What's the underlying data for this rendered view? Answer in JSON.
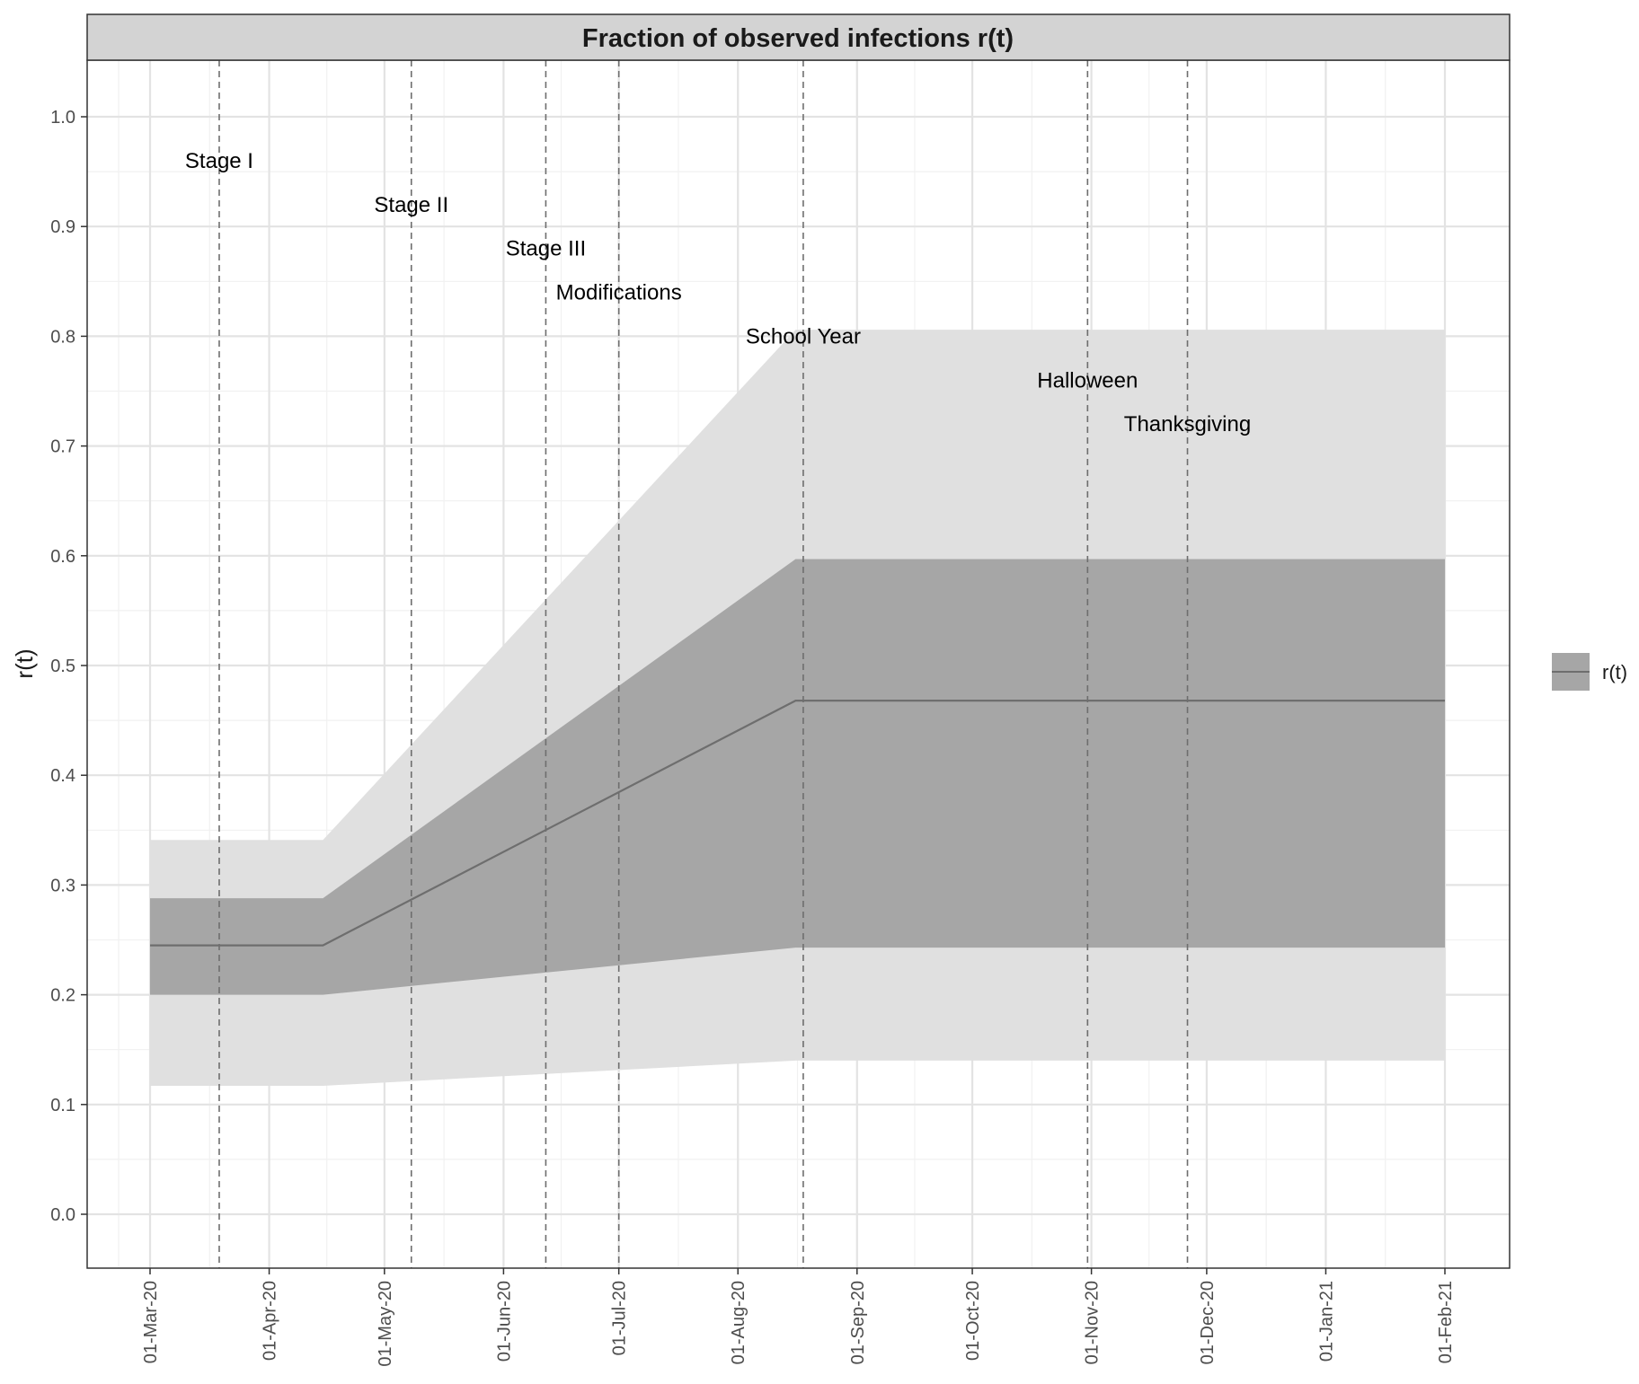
{
  "chart_data": {
    "type": "area",
    "title": "Fraction of observed infections r(t)",
    "xlabel": "",
    "ylabel": "r(t)",
    "x_ticks": [
      "01-Mar-20",
      "01-Apr-20",
      "01-May-20",
      "01-Jun-20",
      "01-Jul-20",
      "01-Aug-20",
      "01-Sep-20",
      "01-Oct-20",
      "01-Nov-20",
      "01-Dec-20",
      "01-Jan-21",
      "01-Feb-21"
    ],
    "x_range": [
      "2020-02-14",
      "2021-02-01"
    ],
    "y_ticks": [
      0.0,
      0.1,
      0.2,
      0.3,
      0.4,
      0.5,
      0.6,
      0.7,
      0.8,
      0.9,
      1.0
    ],
    "y_tick_labels": [
      "0.0",
      "0.1",
      "0.2",
      "0.3",
      "0.4",
      "0.5",
      "0.6",
      "0.7",
      "0.8",
      "0.9",
      "1.0"
    ],
    "ylim": [
      -0.05,
      1.05
    ],
    "grid": true,
    "legend": {
      "position": "right",
      "entries": [
        {
          "label": "r(t)",
          "color": "#a6a6a6",
          "line_color": "#6e6e6e"
        }
      ]
    },
    "series": [
      {
        "name": "r(t)",
        "x": [
          "2020-03-01",
          "2020-04-15",
          "2020-08-16",
          "2021-02-01"
        ],
        "median": [
          0.245,
          0.245,
          0.468,
          0.468
        ],
        "inner_lower": [
          0.2,
          0.2,
          0.243,
          0.243
        ],
        "inner_upper": [
          0.288,
          0.288,
          0.597,
          0.597
        ],
        "outer_lower": [
          0.117,
          0.117,
          0.14,
          0.14
        ],
        "outer_upper": [
          0.341,
          0.341,
          0.806,
          0.806
        ]
      }
    ],
    "events": [
      {
        "label": "Stage I",
        "date": "2020-03-19",
        "y": 0.96
      },
      {
        "label": "Stage II",
        "date": "2020-05-08",
        "y": 0.92
      },
      {
        "label": "Stage III",
        "date": "2020-06-12",
        "y": 0.88
      },
      {
        "label": "Modifications",
        "date": "2020-07-01",
        "y": 0.84
      },
      {
        "label": "School Year",
        "date": "2020-08-18",
        "y": 0.8
      },
      {
        "label": "Halloween",
        "date": "2020-10-31",
        "y": 0.76
      },
      {
        "label": "Thanksgiving",
        "date": "2020-11-26",
        "y": 0.72
      }
    ],
    "colors": {
      "outer_band": "#e0e0e0",
      "inner_band": "#a6a6a6",
      "median_line": "#6e6e6e",
      "event_line": "#6e6e6e",
      "grid_major": "#e3e3e3",
      "grid_minor": "#f1f1f1",
      "strip": "#d3d3d3"
    }
  }
}
